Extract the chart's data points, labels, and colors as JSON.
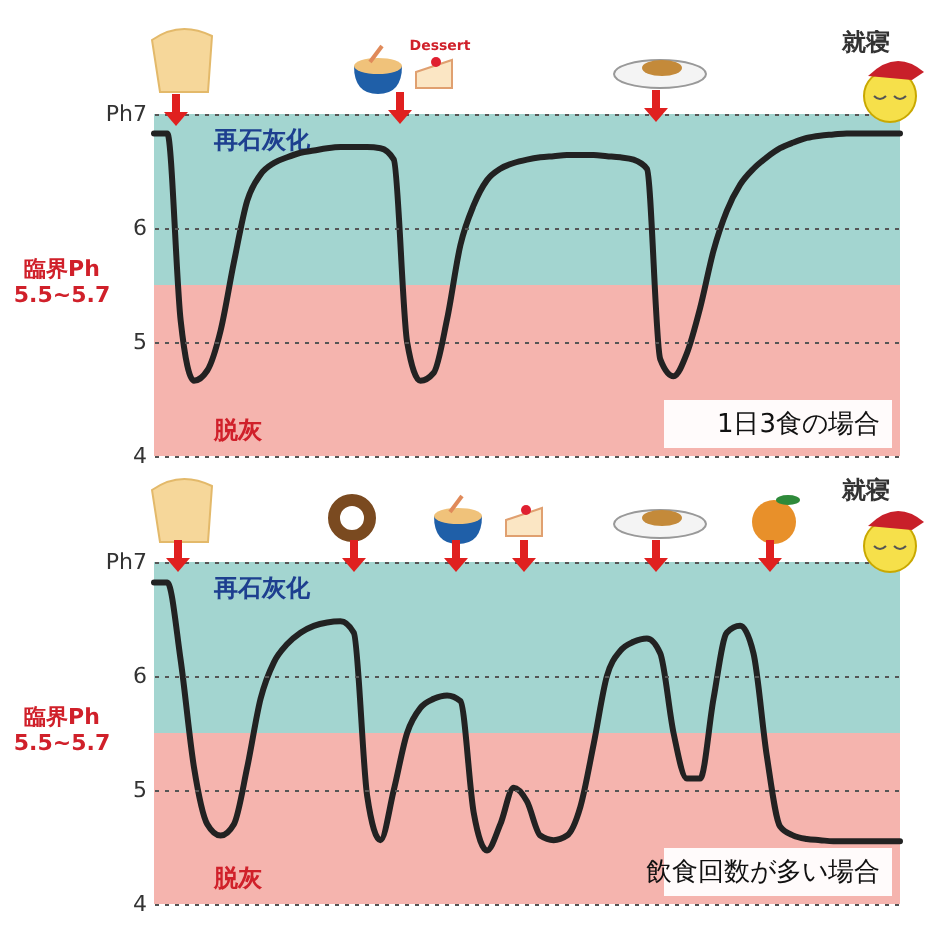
{
  "chart_data": [
    {
      "type": "line",
      "categories": [
        null,
        null,
        null,
        null,
        null,
        null,
        null,
        null,
        null,
        null,
        null,
        null,
        null,
        null,
        null,
        null,
        null,
        null,
        null,
        null,
        null,
        null,
        null,
        null,
        null,
        null,
        null,
        null,
        null,
        null,
        null,
        null,
        null,
        null,
        null,
        null,
        null,
        null,
        null,
        null,
        null,
        null,
        null,
        null,
        null,
        null,
        null,
        null,
        null,
        null,
        null,
        null,
        null,
        null,
        null,
        null,
        null
      ],
      "series": [
        {
          "color": "#222222",
          "values": [
            6.83,
            6.83,
            5.19,
            4.66,
            4.75,
            5.1,
            5.7,
            6.24,
            6.47,
            6.57,
            6.62,
            6.66,
            6.68,
            6.7,
            6.71,
            6.71,
            6.71,
            6.7,
            6.6,
            5.0,
            4.66,
            4.73,
            5.2,
            5.85,
            6.2,
            6.42,
            6.52,
            6.57,
            6.6,
            6.62,
            6.63,
            6.64,
            6.64,
            6.64,
            6.63,
            6.62,
            6.6,
            6.52,
            4.85,
            4.7,
            4.9,
            5.3,
            5.8,
            6.15,
            6.38,
            6.52,
            6.62,
            6.7,
            6.75,
            6.79,
            6.81,
            6.82,
            6.83,
            6.83,
            6.83,
            6.83,
            6.83
          ]
        }
      ],
      "ylim": [
        4,
        7
      ],
      "yticks": [
        4,
        5,
        6,
        {
          "value": 7,
          "label": "Ph7"
        }
      ],
      "grid": "y",
      "tick_labels": "y",
      "line_style": "solid",
      "bands": [
        {
          "axis": "y",
          "from": 5.5,
          "to": 7,
          "label": "再石灰化",
          "color": "#a3d5d0"
        },
        {
          "axis": "y",
          "from": 4,
          "to": 5.5,
          "label": "脱灰",
          "color": "#f5b4ae"
        }
      ],
      "annotations": [
        "臨界Ph 5.5~5.7",
        "1日3食の場合",
        "就寝",
        "Dessert"
      ]
    },
    {
      "type": "line",
      "categories": [
        null,
        null,
        null,
        null,
        null,
        null,
        null,
        null,
        null,
        null,
        null,
        null,
        null,
        null,
        null,
        null,
        null,
        null,
        null,
        null,
        null,
        null,
        null,
        null,
        null,
        null,
        null,
        null,
        null,
        null,
        null,
        null,
        null,
        null,
        null,
        null,
        null,
        null,
        null,
        null,
        null,
        null,
        null,
        null,
        null,
        null,
        null,
        null,
        null,
        null,
        null,
        null,
        null,
        null,
        null,
        null,
        null
      ],
      "series": [
        {
          "color": "#222222",
          "values": [
            6.82,
            6.82,
            6.14,
            5.2,
            4.7,
            4.6,
            4.7,
            5.2,
            5.8,
            6.12,
            6.28,
            6.38,
            6.44,
            6.47,
            6.48,
            6.38,
            4.95,
            4.56,
            5.0,
            5.5,
            5.72,
            5.8,
            5.83,
            5.78,
            4.8,
            4.47,
            4.7,
            5.02,
            4.9,
            4.6,
            4.56,
            4.6,
            4.85,
            5.4,
            6.0,
            6.22,
            6.3,
            6.33,
            6.2,
            5.5,
            5.1,
            5.1,
            5.8,
            6.38,
            6.44,
            6.2,
            5.3,
            4.68,
            4.6,
            4.57,
            4.56,
            4.55,
            4.55,
            4.55,
            4.55,
            4.55,
            4.55
          ]
        }
      ],
      "ylim": [
        4,
        7
      ],
      "yticks": [
        4,
        5,
        6,
        {
          "value": 7,
          "label": "Ph7"
        }
      ],
      "grid": "y",
      "tick_labels": "y",
      "line_style": "solid",
      "bands": [
        {
          "axis": "y",
          "from": 5.5,
          "to": 7,
          "label": "再石灰化",
          "color": "#a3d5d0"
        },
        {
          "axis": "y",
          "from": 4,
          "to": 5.5,
          "label": "脱灰",
          "color": "#f5b4ae"
        }
      ],
      "annotations": [
        "臨界Ph 5.5~5.7",
        "飲食回数が多い場合",
        "就寝"
      ]
    }
  ]
}
